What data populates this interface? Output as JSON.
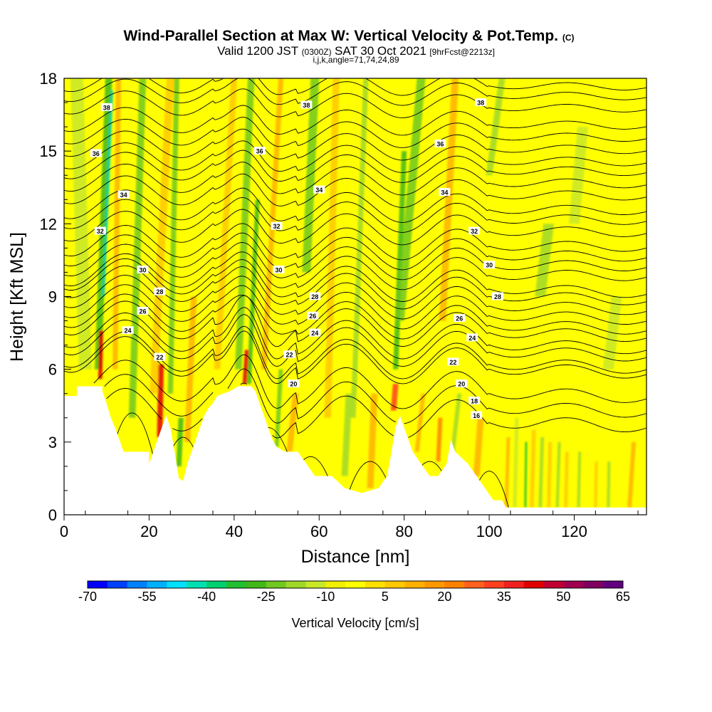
{
  "title": {
    "main": "Wind-Parallel Section at Max W: Vertical Velocity & Pot.Temp.",
    "main_suffix": "(C)",
    "valid_prefix": "Valid 1200 JST",
    "valid_zulu": "(0300Z)",
    "valid_date": "SAT 30 Oct 2021",
    "forecast": "[9hrFcst@2213z]",
    "indices": "i,j,k,angle=71,74,24,89"
  },
  "chart_data": {
    "type": "heatmap",
    "xlabel": "Distance [nm]",
    "ylabel": "Height [Kft MSL]",
    "xlim": [
      0,
      137
    ],
    "ylim": [
      0,
      18
    ],
    "xticks": [
      0,
      20,
      40,
      60,
      80,
      100,
      120
    ],
    "yticks": [
      0,
      3,
      6,
      9,
      12,
      15,
      18
    ],
    "colorbar": {
      "label": "Vertical Velocity [cm/s]",
      "ticks": [
        "-70",
        "-55",
        "-40",
        "-25",
        "-10",
        "5",
        "20",
        "35",
        "50",
        "65"
      ],
      "colors": [
        "#0000ff",
        "#0040ff",
        "#0080ff",
        "#00b0ff",
        "#00e0ff",
        "#00e0b0",
        "#00d070",
        "#20c030",
        "#40b818",
        "#70c820",
        "#a0d828",
        "#c8e828",
        "#f0f000",
        "#ffff00",
        "#ffe000",
        "#ffc800",
        "#ffb000",
        "#ff9800",
        "#ff8000",
        "#ff6020",
        "#ff4020",
        "#f02020",
        "#e00000",
        "#c00030",
        "#a00050",
        "#800060",
        "#600080"
      ]
    },
    "contour_levels": [
      16,
      18,
      20,
      22,
      24,
      26,
      28,
      30,
      32,
      34,
      36,
      38
    ],
    "contour_labels": [
      {
        "text": "38",
        "x": 10.0,
        "y": 16.8
      },
      {
        "text": "36",
        "x": 7.5,
        "y": 14.9
      },
      {
        "text": "34",
        "x": 14.0,
        "y": 13.2
      },
      {
        "text": "32",
        "x": 8.5,
        "y": 11.7
      },
      {
        "text": "30",
        "x": 18.5,
        "y": 10.1
      },
      {
        "text": "28",
        "x": 22.5,
        "y": 9.2
      },
      {
        "text": "26",
        "x": 18.5,
        "y": 8.4
      },
      {
        "text": "24",
        "x": 15.0,
        "y": 7.6
      },
      {
        "text": "22",
        "x": 22.5,
        "y": 6.5
      },
      {
        "text": "38",
        "x": 57.0,
        "y": 16.9
      },
      {
        "text": "36",
        "x": 46.0,
        "y": 15.0
      },
      {
        "text": "34",
        "x": 60.0,
        "y": 13.4
      },
      {
        "text": "32",
        "x": 50.0,
        "y": 11.9
      },
      {
        "text": "30",
        "x": 50.5,
        "y": 10.1
      },
      {
        "text": "28",
        "x": 59.0,
        "y": 9.0
      },
      {
        "text": "26",
        "x": 58.5,
        "y": 8.2
      },
      {
        "text": "24",
        "x": 59.0,
        "y": 7.5
      },
      {
        "text": "22",
        "x": 53.0,
        "y": 6.6
      },
      {
        "text": "20",
        "x": 54.0,
        "y": 5.4
      },
      {
        "text": "38",
        "x": 98.0,
        "y": 17.0
      },
      {
        "text": "36",
        "x": 88.5,
        "y": 15.3
      },
      {
        "text": "34",
        "x": 89.5,
        "y": 13.3
      },
      {
        "text": "32",
        "x": 96.5,
        "y": 11.7
      },
      {
        "text": "30",
        "x": 100.0,
        "y": 10.3
      },
      {
        "text": "28",
        "x": 102.0,
        "y": 9.0
      },
      {
        "text": "26",
        "x": 93.0,
        "y": 8.1
      },
      {
        "text": "24",
        "x": 96.0,
        "y": 7.3
      },
      {
        "text": "22",
        "x": 91.5,
        "y": 6.3
      },
      {
        "text": "20",
        "x": 93.5,
        "y": 5.4
      },
      {
        "text": "18",
        "x": 96.5,
        "y": 4.7
      },
      {
        "text": "16",
        "x": 97.0,
        "y": 4.1
      }
    ]
  }
}
